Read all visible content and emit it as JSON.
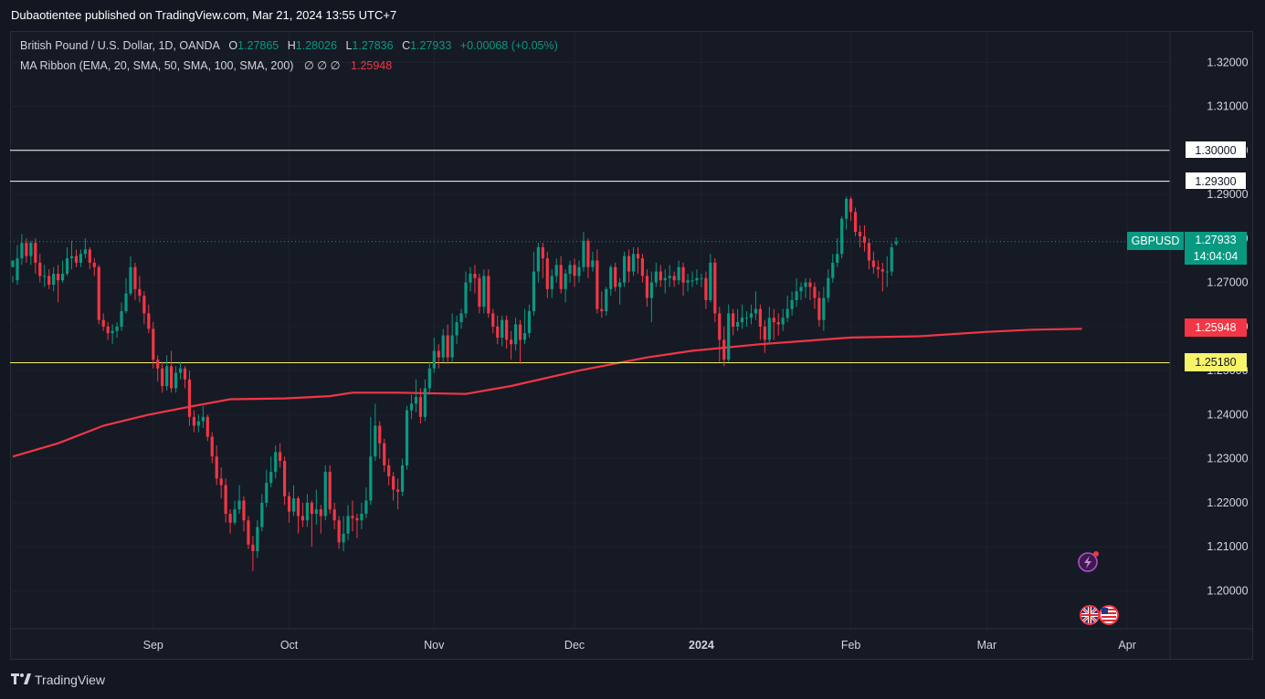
{
  "header": {
    "published": "Dubaotientee published on TradingView.com, Mar 21, 2024 13:55 UTC+7"
  },
  "legend": {
    "symbol_line": "British Pound / U.S. Dollar, 1D, OANDA",
    "o_label": "O",
    "o_value": "1.27865",
    "h_label": "H",
    "h_value": "1.28026",
    "l_label": "L",
    "l_value": "1.27836",
    "c_label": "C",
    "c_value": "1.27933",
    "change": "+0.00068 (+0.05%)",
    "indicator": "MA Ribbon (EMA, 20, SMA, 50, SMA, 100, SMA, 200)",
    "indicator_hidden": "∅ ∅ ∅",
    "indicator_value": "1.25948"
  },
  "tags": {
    "symbol": "GBPUSD",
    "last_price": "1.27933",
    "countdown": "14:04:04",
    "ma_value": "1.25948",
    "level_1": "1.30000",
    "level_2": "1.29300",
    "level_3": "1.25180"
  },
  "brand": {
    "name": "TradingView"
  },
  "colors": {
    "up": "#089981",
    "down": "#f23645",
    "ma": "#f23645",
    "support": "#f7f36a",
    "resistance": "#ffffff",
    "background": "#131722"
  },
  "icons": [
    "lightning-icon",
    "uk-flag-icon",
    "us-flag-icon",
    "tv-logo-icon"
  ],
  "chart_data": {
    "type": "candlestick",
    "y_ticks": [
      "1.32000",
      "1.31000",
      "1.30000",
      "1.29000",
      "1.28000",
      "1.27000",
      "1.26000",
      "1.25000",
      "1.24000",
      "1.23000",
      "1.22000",
      "1.21000",
      "1.20000"
    ],
    "ylim": [
      1.1914,
      1.3271
    ],
    "x_ticks": [
      {
        "label": "Sep",
        "index": 31,
        "bold": false
      },
      {
        "label": "Oct",
        "index": 61,
        "bold": false
      },
      {
        "label": "Nov",
        "index": 93,
        "bold": false
      },
      {
        "label": "Dec",
        "index": 124,
        "bold": false
      },
      {
        "label": "2024",
        "index": 152,
        "bold": true
      },
      {
        "label": "Feb",
        "index": 185,
        "bold": false
      },
      {
        "label": "Mar",
        "index": 215,
        "bold": false
      },
      {
        "label": "Apr",
        "index": 246,
        "bold": false
      }
    ],
    "horizontal_levels": [
      {
        "value": 1.3,
        "color": "#ffffff",
        "label_bg": "#ffffff"
      },
      {
        "value": 1.293,
        "color": "#ffffff",
        "label_bg": "#ffffff"
      },
      {
        "value": 1.2518,
        "color": "#f7f36a",
        "label_bg": "#f7f36a"
      }
    ],
    "ma200": [
      [
        0,
        1.2305
      ],
      [
        10,
        1.2335
      ],
      [
        20,
        1.2375
      ],
      [
        30,
        1.24
      ],
      [
        40,
        1.242
      ],
      [
        48,
        1.2435
      ],
      [
        60,
        1.2437
      ],
      [
        70,
        1.2442
      ],
      [
        75,
        1.245
      ],
      [
        85,
        1.245
      ],
      [
        100,
        1.2447
      ],
      [
        110,
        1.2465
      ],
      [
        125,
        1.25
      ],
      [
        140,
        1.253
      ],
      [
        150,
        1.2545
      ],
      [
        165,
        1.256
      ],
      [
        185,
        1.2575
      ],
      [
        200,
        1.2578
      ],
      [
        215,
        1.2588
      ],
      [
        225,
        1.2593
      ],
      [
        236,
        1.2595
      ]
    ],
    "candles": [
      [
        1.2735,
        1.275,
        1.2715,
        1.27
      ],
      [
        1.2705,
        1.2755,
        1.2785,
        1.2695
      ],
      [
        1.2755,
        1.279,
        1.281,
        1.274
      ],
      [
        1.279,
        1.276,
        1.28,
        1.2745
      ],
      [
        1.276,
        1.279,
        1.2795,
        1.274
      ],
      [
        1.279,
        1.2745,
        1.28,
        1.272
      ],
      [
        1.2745,
        1.2715,
        1.2765,
        1.27
      ],
      [
        1.2715,
        1.2715,
        1.274,
        1.269
      ],
      [
        1.2715,
        1.2695,
        1.273,
        1.2685
      ],
      [
        1.2695,
        1.272,
        1.2735,
        1.268
      ],
      [
        1.272,
        1.2705,
        1.274,
        1.2655
      ],
      [
        1.2705,
        1.272,
        1.275,
        1.27
      ],
      [
        1.272,
        1.2755,
        1.278,
        1.2715
      ],
      [
        1.2755,
        1.276,
        1.2795,
        1.273
      ],
      [
        1.276,
        1.2745,
        1.2775,
        1.2735
      ],
      [
        1.2745,
        1.2765,
        1.2775,
        1.2735
      ],
      [
        1.2765,
        1.2775,
        1.28,
        1.2755
      ],
      [
        1.2775,
        1.2745,
        1.278,
        1.273
      ],
      [
        1.2745,
        1.2735,
        1.2755,
        1.2715
      ],
      [
        1.2735,
        1.2615,
        1.274,
        1.2605
      ],
      [
        1.2615,
        1.26,
        1.263,
        1.259
      ],
      [
        1.26,
        1.2585,
        1.261,
        1.257
      ],
      [
        1.2585,
        1.259,
        1.2605,
        1.256
      ],
      [
        1.259,
        1.26,
        1.261,
        1.2575
      ],
      [
        1.26,
        1.2635,
        1.2655,
        1.259
      ],
      [
        1.2635,
        1.2675,
        1.271,
        1.263
      ],
      [
        1.2675,
        1.2735,
        1.276,
        1.267
      ],
      [
        1.2735,
        1.2685,
        1.2745,
        1.266
      ],
      [
        1.2685,
        1.267,
        1.2715,
        1.2655
      ],
      [
        1.267,
        1.263,
        1.268,
        1.2605
      ],
      [
        1.263,
        1.2595,
        1.265,
        1.2585
      ],
      [
        1.2595,
        1.2525,
        1.261,
        1.2505
      ],
      [
        1.2525,
        1.2505,
        1.2535,
        1.2475
      ],
      [
        1.2505,
        1.2465,
        1.252,
        1.245
      ],
      [
        1.2465,
        1.251,
        1.2535,
        1.2455
      ],
      [
        1.251,
        1.246,
        1.2545,
        1.245
      ],
      [
        1.246,
        1.2495,
        1.251,
        1.245
      ],
      [
        1.2495,
        1.2505,
        1.252,
        1.248
      ],
      [
        1.2505,
        1.248,
        1.251,
        1.246
      ],
      [
        1.248,
        1.2395,
        1.25,
        1.2375
      ],
      [
        1.2395,
        1.2375,
        1.241,
        1.236
      ],
      [
        1.2375,
        1.2385,
        1.24,
        1.236
      ],
      [
        1.2385,
        1.2395,
        1.242,
        1.237
      ],
      [
        1.2395,
        1.235,
        1.24,
        1.234
      ],
      [
        1.235,
        1.2305,
        1.236,
        1.229
      ],
      [
        1.2305,
        1.2255,
        1.233,
        1.224
      ],
      [
        1.2255,
        1.224,
        1.228,
        1.221
      ],
      [
        1.224,
        1.2175,
        1.2255,
        1.2155
      ],
      [
        1.2175,
        1.2155,
        1.2185,
        1.213
      ],
      [
        1.2155,
        1.2185,
        1.2205,
        1.215
      ],
      [
        1.2185,
        1.2205,
        1.224,
        1.2175
      ],
      [
        1.2205,
        1.216,
        1.2215,
        1.2135
      ],
      [
        1.216,
        1.2105,
        1.217,
        1.2095
      ],
      [
        1.2105,
        1.209,
        1.2125,
        1.2045
      ],
      [
        1.209,
        1.2145,
        1.216,
        1.2075
      ],
      [
        1.2145,
        1.22,
        1.222,
        1.2135
      ],
      [
        1.22,
        1.2245,
        1.2275,
        1.219
      ],
      [
        1.2245,
        1.227,
        1.2305,
        1.2235
      ],
      [
        1.227,
        1.2315,
        1.233,
        1.2255
      ],
      [
        1.2315,
        1.2295,
        1.2335,
        1.228
      ],
      [
        1.2295,
        1.2215,
        1.2305,
        1.2195
      ],
      [
        1.2215,
        1.218,
        1.2225,
        1.2155
      ],
      [
        1.218,
        1.221,
        1.224,
        1.217
      ],
      [
        1.221,
        1.217,
        1.2215,
        1.213
      ],
      [
        1.217,
        1.216,
        1.22,
        1.2145
      ],
      [
        1.216,
        1.22,
        1.222,
        1.2145
      ],
      [
        1.22,
        1.2175,
        1.2205,
        1.21
      ],
      [
        1.2175,
        1.2185,
        1.223,
        1.215
      ],
      [
        1.2185,
        1.217,
        1.2195,
        1.213
      ],
      [
        1.217,
        1.227,
        1.2285,
        1.216
      ],
      [
        1.227,
        1.2185,
        1.2285,
        1.2175
      ],
      [
        1.2185,
        1.216,
        1.22,
        1.214
      ],
      [
        1.216,
        1.211,
        1.217,
        1.2095
      ],
      [
        1.211,
        1.213,
        1.217,
        1.209
      ],
      [
        1.213,
        1.217,
        1.2195,
        1.2115
      ],
      [
        1.217,
        1.2165,
        1.2205,
        1.2135
      ],
      [
        1.2165,
        1.216,
        1.2175,
        1.212
      ],
      [
        1.216,
        1.2175,
        1.22,
        1.214
      ],
      [
        1.2175,
        1.2205,
        1.2235,
        1.2165
      ],
      [
        1.2205,
        1.2305,
        1.2395,
        1.2195
      ],
      [
        1.2305,
        1.2375,
        1.2425,
        1.2295
      ],
      [
        1.2375,
        1.2335,
        1.2385,
        1.23
      ],
      [
        1.2335,
        1.2285,
        1.2345,
        1.227
      ],
      [
        1.2285,
        1.226,
        1.23,
        1.224
      ],
      [
        1.226,
        1.223,
        1.227,
        1.2205
      ],
      [
        1.223,
        1.2225,
        1.2255,
        1.2185
      ],
      [
        1.2225,
        1.2285,
        1.23,
        1.2215
      ],
      [
        1.2285,
        1.241,
        1.242,
        1.2275
      ],
      [
        1.241,
        1.2425,
        1.2445,
        1.239
      ],
      [
        1.2425,
        1.244,
        1.248,
        1.2405
      ],
      [
        1.244,
        1.2395,
        1.246,
        1.238
      ],
      [
        1.2395,
        1.246,
        1.248,
        1.2385
      ],
      [
        1.246,
        1.2505,
        1.252,
        1.2445
      ],
      [
        1.2505,
        1.2545,
        1.2575,
        1.2495
      ],
      [
        1.2545,
        1.253,
        1.256,
        1.2505
      ],
      [
        1.253,
        1.258,
        1.2595,
        1.252
      ],
      [
        1.258,
        1.253,
        1.2605,
        1.2515
      ],
      [
        1.253,
        1.258,
        1.263,
        1.252
      ],
      [
        1.258,
        1.261,
        1.2625,
        1.256
      ],
      [
        1.261,
        1.263,
        1.264,
        1.2595
      ],
      [
        1.263,
        1.27,
        1.2725,
        1.262
      ],
      [
        1.27,
        1.272,
        1.2735,
        1.268
      ],
      [
        1.272,
        1.271,
        1.274,
        1.2675
      ],
      [
        1.271,
        1.2645,
        1.272,
        1.263
      ],
      [
        1.2645,
        1.2715,
        1.273,
        1.263
      ],
      [
        1.2715,
        1.263,
        1.273,
        1.262
      ],
      [
        1.263,
        1.26,
        1.264,
        1.2585
      ],
      [
        1.26,
        1.2575,
        1.2625,
        1.256
      ],
      [
        1.2575,
        1.2615,
        1.2625,
        1.2555
      ],
      [
        1.2615,
        1.257,
        1.2625,
        1.255
      ],
      [
        1.257,
        1.256,
        1.259,
        1.2525
      ],
      [
        1.256,
        1.2605,
        1.262,
        1.2545
      ],
      [
        1.2605,
        1.257,
        1.2615,
        1.2515
      ],
      [
        1.257,
        1.2585,
        1.264,
        1.256
      ],
      [
        1.2585,
        1.2635,
        1.265,
        1.2575
      ],
      [
        1.2635,
        1.2725,
        1.277,
        1.2625
      ],
      [
        1.2725,
        1.278,
        1.279,
        1.27
      ],
      [
        1.278,
        1.2755,
        1.279,
        1.271
      ],
      [
        1.2755,
        1.2685,
        1.277,
        1.2665
      ],
      [
        1.2685,
        1.2715,
        1.273,
        1.2665
      ],
      [
        1.2715,
        1.274,
        1.2755,
        1.27
      ],
      [
        1.274,
        1.2685,
        1.276,
        1.2675
      ],
      [
        1.2685,
        1.272,
        1.273,
        1.2655
      ],
      [
        1.272,
        1.274,
        1.275,
        1.27
      ],
      [
        1.274,
        1.2715,
        1.2755,
        1.269
      ],
      [
        1.2715,
        1.2735,
        1.275,
        1.27
      ],
      [
        1.2735,
        1.2795,
        1.2815,
        1.2725
      ],
      [
        1.2795,
        1.2735,
        1.28,
        1.271
      ],
      [
        1.2735,
        1.275,
        1.277,
        1.2725
      ],
      [
        1.275,
        1.264,
        1.2775,
        1.263
      ],
      [
        1.264,
        1.2635,
        1.268,
        1.262
      ],
      [
        1.2635,
        1.2685,
        1.269,
        1.2625
      ],
      [
        1.2685,
        1.2735,
        1.274,
        1.267
      ],
      [
        1.2735,
        1.269,
        1.2745,
        1.268
      ],
      [
        1.269,
        1.27,
        1.271,
        1.265
      ],
      [
        1.27,
        1.276,
        1.277,
        1.269
      ],
      [
        1.276,
        1.2725,
        1.2775,
        1.27
      ],
      [
        1.2725,
        1.2765,
        1.278,
        1.2715
      ],
      [
        1.2765,
        1.2755,
        1.278,
        1.272
      ],
      [
        1.2755,
        1.2715,
        1.2765,
        1.27
      ],
      [
        1.2715,
        1.2665,
        1.273,
        1.2645
      ],
      [
        1.2665,
        1.27,
        1.2725,
        1.261
      ],
      [
        1.27,
        1.2725,
        1.2745,
        1.269
      ],
      [
        1.2725,
        1.2705,
        1.274,
        1.269
      ],
      [
        1.2705,
        1.271,
        1.273,
        1.2675
      ],
      [
        1.271,
        1.2715,
        1.274,
        1.269
      ],
      [
        1.2715,
        1.2705,
        1.2725,
        1.269
      ],
      [
        1.2705,
        1.2735,
        1.275,
        1.2695
      ],
      [
        1.2735,
        1.27,
        1.2745,
        1.267
      ],
      [
        1.27,
        1.2705,
        1.272,
        1.268
      ],
      [
        1.2705,
        1.2705,
        1.2725,
        1.269
      ],
      [
        1.2705,
        1.271,
        1.273,
        1.2695
      ],
      [
        1.271,
        1.271,
        1.272,
        1.269
      ],
      [
        1.271,
        1.266,
        1.2725,
        1.264
      ],
      [
        1.266,
        1.2745,
        1.2765,
        1.2655
      ],
      [
        1.2745,
        1.263,
        1.2755,
        1.261
      ],
      [
        1.263,
        1.257,
        1.2645,
        1.252
      ],
      [
        1.257,
        1.2525,
        1.26,
        1.251
      ],
      [
        1.2525,
        1.263,
        1.265,
        1.252
      ],
      [
        1.263,
        1.26,
        1.264,
        1.258
      ],
      [
        1.26,
        1.261,
        1.264,
        1.259
      ],
      [
        1.261,
        1.262,
        1.265,
        1.2595
      ],
      [
        1.262,
        1.262,
        1.2635,
        1.26
      ],
      [
        1.262,
        1.263,
        1.265,
        1.2605
      ],
      [
        1.263,
        1.264,
        1.268,
        1.2615
      ],
      [
        1.264,
        1.26,
        1.265,
        1.257
      ],
      [
        1.26,
        1.257,
        1.2615,
        1.254
      ],
      [
        1.257,
        1.262,
        1.2645,
        1.256
      ],
      [
        1.262,
        1.261,
        1.264,
        1.257
      ],
      [
        1.261,
        1.2605,
        1.263,
        1.258
      ],
      [
        1.2605,
        1.262,
        1.264,
        1.259
      ],
      [
        1.262,
        1.264,
        1.267,
        1.261
      ],
      [
        1.264,
        1.266,
        1.268,
        1.2625
      ],
      [
        1.266,
        1.268,
        1.271,
        1.2645
      ],
      [
        1.268,
        1.269,
        1.27,
        1.266
      ],
      [
        1.269,
        1.27,
        1.271,
        1.2665
      ],
      [
        1.27,
        1.269,
        1.271,
        1.266
      ],
      [
        1.269,
        1.2665,
        1.27,
        1.264
      ],
      [
        1.2665,
        1.2615,
        1.268,
        1.26
      ],
      [
        1.2615,
        1.2665,
        1.269,
        1.259
      ],
      [
        1.2665,
        1.271,
        1.273,
        1.2655
      ],
      [
        1.271,
        1.2745,
        1.2765,
        1.27
      ],
      [
        1.2745,
        1.2765,
        1.28,
        1.2735
      ],
      [
        1.2765,
        1.2845,
        1.285,
        1.2755
      ],
      [
        1.2845,
        1.289,
        1.2895,
        1.282
      ],
      [
        1.289,
        1.286,
        1.2895,
        1.284
      ],
      [
        1.286,
        1.2815,
        1.287,
        1.2805
      ],
      [
        1.2815,
        1.2805,
        1.283,
        1.278
      ],
      [
        1.2805,
        1.279,
        1.283,
        1.277
      ],
      [
        1.279,
        1.275,
        1.28,
        1.273
      ],
      [
        1.275,
        1.2735,
        1.277,
        1.272
      ],
      [
        1.2735,
        1.273,
        1.275,
        1.271
      ],
      [
        1.273,
        1.2725,
        1.2745,
        1.268
      ],
      [
        1.2725,
        1.2725,
        1.276,
        1.269
      ],
      [
        1.2725,
        1.278,
        1.279,
        1.2715
      ],
      [
        1.2787,
        1.2793,
        1.2803,
        1.2784
      ]
    ]
  }
}
